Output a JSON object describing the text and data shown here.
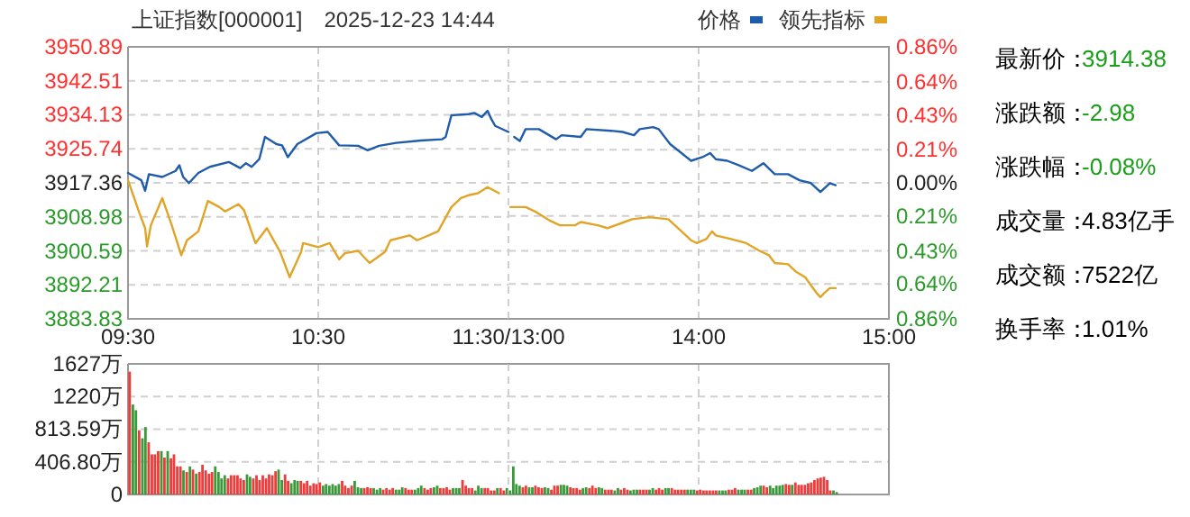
{
  "chart_data": [
    {
      "type": "line",
      "title": "上证指数[000001]　2025-12-23 14:44",
      "grid": true,
      "xlim": [
        9.5,
        11.5
      ],
      "xticks": [
        {
          "value": 9.5,
          "label": "09:30"
        },
        {
          "value": 10.5,
          "label": "10:30"
        },
        {
          "value": 11.5,
          "label": "11:30/13:00"
        }
      ],
      "ylim": [
        3883.83,
        3950.89
      ],
      "yticks": [
        3883.83,
        3892.21,
        3900.59,
        3908.98,
        3917.36,
        3925.74,
        3934.13,
        3942.51,
        3950.89
      ],
      "series": [
        {
          "color": "#1f5cab",
          "x": [
            9.5,
            9.57,
            9.59,
            9.61,
            9.68,
            9.75,
            9.77,
            9.79,
            9.82,
            9.87,
            9.93,
            10.03,
            10.09,
            10.12,
            10.15,
            10.19,
            10.22,
            10.28,
            10.31,
            10.34,
            10.39,
            10.49,
            10.55,
            10.61,
            10.71,
            10.76,
            10.82,
            10.91,
            11.04,
            11.15,
            11.17,
            11.2,
            11.29,
            11.32,
            11.36,
            11.39,
            11.41,
            11.43,
            11.5
          ],
          "values": [
            3919.8,
            3918.0,
            3915.4,
            3919.5,
            3918.8,
            3920.3,
            3921.7,
            3918.8,
            3917.3,
            3919.8,
            3921.3,
            3922.5,
            3921.0,
            3922.2,
            3921.3,
            3923.2,
            3928.7,
            3926.9,
            3926.6,
            3923.7,
            3926.9,
            3929.6,
            3929.9,
            3926.6,
            3926.5,
            3925.4,
            3926.5,
            3927.2,
            3927.8,
            3928.1,
            3928.7,
            3934.0,
            3934.3,
            3934.6,
            3933.6,
            3935.1,
            3933.1,
            3931.4,
            3929.9
          ]
        },
        {
          "color": "#e0a526",
          "x": [
            9.5,
            9.56,
            9.59,
            9.6,
            9.62,
            9.68,
            9.73,
            9.78,
            9.81,
            9.87,
            9.92,
            9.98,
            10.01,
            10.08,
            10.11,
            10.17,
            10.23,
            10.3,
            10.35,
            10.41,
            10.42,
            10.5,
            10.56,
            10.61,
            10.64,
            10.71,
            10.77,
            10.85,
            10.88,
            10.98,
            11.02,
            11.13,
            11.2,
            11.25,
            11.29,
            11.34,
            11.39,
            11.45
          ],
          "values": [
            3918.0,
            3909.9,
            3906.2,
            3901.7,
            3906.9,
            3913.6,
            3906.9,
            3899.5,
            3903.2,
            3905.4,
            3912.9,
            3911.4,
            3910.3,
            3912.1,
            3910.6,
            3902.5,
            3906.2,
            3900.3,
            3894.1,
            3900.3,
            3902.5,
            3901.5,
            3902.5,
            3898.5,
            3900.0,
            3900.6,
            3897.6,
            3900.3,
            3903.2,
            3904.4,
            3903.2,
            3905.4,
            3911.4,
            3913.6,
            3914.3,
            3914.8,
            3916.3,
            3914.8
          ]
        }
      ]
    },
    {
      "type": "line",
      "legend": "top right",
      "grid": true,
      "xlim": [
        13,
        15
      ],
      "xticks": [
        {
          "value": 13,
          "label": null
        },
        {
          "value": 14,
          "label": "14:00"
        },
        {
          "value": 15,
          "label": "15:00"
        }
      ],
      "ylim": [
        3883.83,
        3950.89
      ],
      "y2lim": [
        -0.86,
        0.86
      ],
      "y2ticks": [
        {
          "value": -0.86,
          "label": "0.86%"
        },
        {
          "value": -0.64,
          "label": "0.64%"
        },
        {
          "value": -0.43,
          "label": "0.43%"
        },
        {
          "value": -0.21,
          "label": "0.21%"
        },
        {
          "value": 0,
          "label": "0.00%"
        },
        {
          "value": 0.21,
          "label": "0.21%"
        },
        {
          "value": 0.43,
          "label": "0.43%"
        },
        {
          "value": 0.64,
          "label": "0.64%"
        },
        {
          "value": 0.86,
          "label": "0.86%"
        }
      ],
      "series": [
        {
          "name": "价格",
          "color": "#1f5cab",
          "x": [
            13.03,
            13.06,
            13.09,
            13.16,
            13.25,
            13.28,
            13.38,
            13.41,
            13.54,
            13.6,
            13.66,
            13.69,
            13.76,
            13.79,
            13.85,
            13.91,
            13.96,
            14.02,
            14.06,
            14.09,
            14.15,
            14.21,
            14.28,
            14.34,
            14.4,
            14.47,
            14.53,
            14.59,
            14.64,
            14.69,
            14.72
          ],
          "values": [
            3928.7,
            3927.7,
            3930.6,
            3930.6,
            3928.1,
            3929.1,
            3928.7,
            3930.6,
            3930.2,
            3929.9,
            3929.1,
            3930.6,
            3931.1,
            3930.6,
            3926.9,
            3924.7,
            3922.8,
            3923.7,
            3924.7,
            3923.2,
            3922.8,
            3921.7,
            3920.3,
            3922.2,
            3919.5,
            3919.5,
            3918.0,
            3917.3,
            3915.1,
            3917.3,
            3916.8
          ]
        },
        {
          "name": "领先指标",
          "color": "#e0a526",
          "x": [
            13.01,
            13.09,
            13.14,
            13.22,
            13.27,
            13.35,
            13.38,
            13.47,
            13.52,
            13.61,
            13.65,
            13.74,
            13.84,
            13.91,
            13.96,
            13.99,
            14.04,
            14.07,
            14.09,
            14.17,
            14.25,
            14.32,
            14.37,
            14.4,
            14.47,
            14.51,
            14.56,
            14.59,
            14.62,
            14.64,
            14.66,
            14.69,
            14.72
          ],
          "values": [
            3911.4,
            3911.4,
            3910.3,
            3908.0,
            3906.9,
            3906.9,
            3907.7,
            3906.9,
            3906.2,
            3907.7,
            3908.4,
            3908.9,
            3908.4,
            3905.4,
            3903.2,
            3902.5,
            3903.5,
            3905.4,
            3904.4,
            3903.5,
            3902.5,
            3900.6,
            3899.5,
            3897.6,
            3897.3,
            3895.5,
            3894.1,
            3892.1,
            3890.2,
            3889.2,
            3890.2,
            3891.4,
            3891.4
          ]
        }
      ]
    },
    {
      "type": "bar",
      "grid": true,
      "tick_labels": "y",
      "xlim": [
        9.5,
        11.5
      ],
      "xticks": [
        9.5,
        10.5,
        11.5
      ],
      "ylim": [
        0,
        1627
      ],
      "yticks": [
        0,
        {
          "value": 406.8,
          "label": "406.80万"
        },
        {
          "value": 813.59,
          "label": "813.59万"
        },
        {
          "value": 1220,
          "label": "1220万"
        },
        {
          "value": 1627,
          "label": "1627万"
        }
      ],
      "x": [
        9.5,
        9.517,
        9.533,
        9.55,
        9.567,
        9.583,
        9.6,
        9.617,
        9.633,
        9.65,
        9.667,
        9.683,
        9.7,
        9.717,
        9.733,
        9.75,
        9.767,
        9.783,
        9.8,
        9.817,
        9.833,
        9.85,
        9.867,
        9.883,
        9.9,
        9.917,
        9.933,
        9.95,
        9.967,
        9.983,
        10,
        10.017,
        10.033,
        10.05,
        10.067,
        10.083,
        10.1,
        10.117,
        10.133,
        10.15,
        10.167,
        10.183,
        10.2,
        10.217,
        10.233,
        10.25,
        10.267,
        10.283,
        10.3,
        10.317,
        10.333,
        10.35,
        10.367,
        10.383,
        10.4,
        10.417,
        10.433,
        10.45,
        10.467,
        10.483,
        10.5,
        10.517,
        10.533,
        10.55,
        10.567,
        10.583,
        10.6,
        10.617,
        10.633,
        10.65,
        10.667,
        10.683,
        10.7,
        10.717,
        10.733,
        10.75,
        10.767,
        10.783,
        10.8,
        10.817,
        10.833,
        10.85,
        10.867,
        10.883,
        10.9,
        10.917,
        10.933,
        10.95,
        10.967,
        10.983,
        11,
        11.017,
        11.033,
        11.05,
        11.067,
        11.083,
        11.1,
        11.117,
        11.133,
        11.15,
        11.167,
        11.183,
        11.2,
        11.217,
        11.233,
        11.25,
        11.267,
        11.283,
        11.3,
        11.317,
        11.333,
        11.35,
        11.367,
        11.383,
        11.4,
        11.417,
        11.433,
        11.45,
        11.467,
        11.483
      ],
      "values": [
        1530,
        1120,
        1050,
        800,
        700,
        840,
        650,
        500,
        500,
        540,
        540,
        460,
        540,
        450,
        500,
        350,
        350,
        300,
        280,
        350,
        310,
        260,
        280,
        370,
        300,
        260,
        280,
        350,
        280,
        200,
        240,
        200,
        240,
        240,
        240,
        200,
        180,
        250,
        220,
        200,
        240,
        180,
        240,
        200,
        250,
        240,
        290,
        310,
        180,
        250,
        170,
        140,
        180,
        170,
        170,
        140,
        170,
        110,
        140,
        130,
        150,
        110,
        130,
        110,
        130,
        110,
        130,
        170,
        110,
        80,
        110,
        170,
        90,
        80,
        80,
        90,
        80,
        80,
        60,
        80,
        60,
        80,
        60,
        80,
        60,
        60,
        90,
        80,
        60,
        60,
        60,
        80,
        110,
        80,
        60,
        80,
        90,
        110,
        80,
        80,
        90,
        60,
        80,
        80,
        80,
        180,
        110,
        80,
        80,
        50,
        110,
        80,
        80,
        80,
        50,
        50,
        80,
        80,
        50,
        80
      ],
      "colors": [
        "#ee3b3b",
        "#3a9a3a",
        "#3a9a3a",
        "#ee3b3b",
        "#3a9a3a",
        "#3a9a3a",
        "#ee3b3b",
        "#ee3b3b",
        "#ee3b3b",
        "#ee3b3b",
        "#3a9a3a",
        "#ee3b3b",
        "#3a9a3a",
        "#ee3b3b",
        "#ee3b3b",
        "#ee3b3b",
        "#ee3b3b",
        "#3a9a3a",
        "#ee3b3b",
        "#3a9a3a",
        "#ee3b3b",
        "#3a9a3a",
        "#ee3b3b",
        "#ee3b3b",
        "#ee3b3b",
        "#ee3b3b",
        "#ee3b3b",
        "#3a9a3a",
        "#3a9a3a",
        "#3a9a3a",
        "#3a9a3a",
        "#ee3b3b",
        "#ee3b3b",
        "#ee3b3b",
        "#ee3b3b",
        "#ee3b3b",
        "#ee3b3b",
        "#3a9a3a",
        "#3a9a3a",
        "#ee3b3b",
        "#ee3b3b",
        "#ee3b3b",
        "#ee3b3b",
        "#ee3b3b",
        "#ee3b3b",
        "#ee3b3b",
        "#ee3b3b",
        "#3a9a3a",
        "#3a9a3a",
        "#ee3b3b",
        "#ee3b3b",
        "#3a9a3a",
        "#3a9a3a",
        "#3a9a3a",
        "#ee3b3b",
        "#ee3b3b",
        "#ee3b3b",
        "#ee3b3b",
        "#ee3b3b",
        "#ee3b3b",
        "#ee3b3b",
        "#3a9a3a",
        "#3a9a3a",
        "#3a9a3a",
        "#3a9a3a",
        "#3a9a3a",
        "#3a9a3a",
        "#ee3b3b",
        "#ee3b3b",
        "#ee3b3b",
        "#ee3b3b",
        "#3a9a3a",
        "#3a9a3a",
        "#3a9a3a",
        "#ee3b3b",
        "#ee3b3b",
        "#ee3b3b",
        "#3a9a3a",
        "#3a9a3a",
        "#3a9a3a",
        "#ee3b3b",
        "#ee3b3b",
        "#ee3b3b",
        "#ee3b3b",
        "#3a9a3a",
        "#3a9a3a",
        "#3a9a3a",
        "#ee3b3b",
        "#ee3b3b",
        "#ee3b3b",
        "#3a9a3a",
        "#3a9a3a",
        "#3a9a3a",
        "#ee3b3b",
        "#ee3b3b",
        "#ee3b3b",
        "#3a9a3a",
        "#3a9a3a",
        "#ee3b3b",
        "#ee3b3b",
        "#ee3b3b",
        "#ee3b3b",
        "#3a9a3a",
        "#3a9a3a",
        "#3a9a3a",
        "#ee3b3b",
        "#ee3b3b",
        "#ee3b3b",
        "#ee3b3b",
        "#3a9a3a",
        "#3a9a3a",
        "#3a9a3a",
        "#ee3b3b",
        "#ee3b3b",
        "#ee3b3b",
        "#ee3b3b",
        "#3a9a3a",
        "#ee3b3b",
        "#ee3b3b",
        "#3a9a3a"
      ]
    },
    {
      "type": "bar",
      "grid": true,
      "tick_labels": false,
      "xlim": [
        13,
        15
      ],
      "xticks": [
        13,
        14,
        15
      ],
      "ylim": [
        0,
        1627
      ],
      "yticks": [
        0,
        406.8,
        813.59,
        1220,
        1627
      ],
      "x": [
        13,
        13.017,
        13.033,
        13.05,
        13.067,
        13.083,
        13.1,
        13.117,
        13.133,
        13.15,
        13.167,
        13.183,
        13.2,
        13.217,
        13.233,
        13.25,
        13.267,
        13.283,
        13.3,
        13.317,
        13.333,
        13.35,
        13.367,
        13.383,
        13.4,
        13.417,
        13.433,
        13.45,
        13.467,
        13.483,
        13.5,
        13.517,
        13.533,
        13.55,
        13.567,
        13.583,
        13.6,
        13.617,
        13.633,
        13.65,
        13.667,
        13.683,
        13.7,
        13.717,
        13.733,
        13.75,
        13.767,
        13.783,
        13.8,
        13.817,
        13.833,
        13.85,
        13.867,
        13.883,
        13.9,
        13.917,
        13.933,
        13.95,
        13.967,
        13.983,
        14,
        14.017,
        14.033,
        14.05,
        14.067,
        14.083,
        14.1,
        14.117,
        14.133,
        14.15,
        14.167,
        14.183,
        14.2,
        14.217,
        14.233,
        14.25,
        14.267,
        14.283,
        14.3,
        14.317,
        14.333,
        14.35,
        14.367,
        14.383,
        14.4,
        14.417,
        14.433,
        14.45,
        14.467,
        14.483,
        14.5,
        14.517,
        14.533,
        14.55,
        14.567,
        14.583,
        14.6,
        14.617,
        14.633,
        14.65,
        14.667,
        14.683,
        14.7,
        14.717
      ],
      "values": [
        50,
        350,
        130,
        110,
        90,
        110,
        90,
        90,
        110,
        90,
        80,
        90,
        80,
        60,
        110,
        110,
        120,
        120,
        110,
        90,
        80,
        80,
        60,
        80,
        90,
        80,
        110,
        80,
        90,
        80,
        60,
        60,
        60,
        50,
        80,
        60,
        80,
        60,
        50,
        60,
        60,
        60,
        60,
        60,
        60,
        80,
        60,
        80,
        60,
        80,
        80,
        80,
        60,
        60,
        60,
        60,
        60,
        60,
        60,
        50,
        60,
        50,
        50,
        50,
        50,
        50,
        50,
        50,
        50,
        60,
        60,
        80,
        60,
        60,
        60,
        60,
        60,
        80,
        90,
        110,
        110,
        90,
        110,
        80,
        110,
        110,
        120,
        130,
        120,
        120,
        150,
        120,
        120,
        120,
        140,
        150,
        180,
        200,
        210,
        220,
        180,
        50,
        50,
        30
      ],
      "colors": [
        "#3a9a3a",
        "#3a9a3a",
        "#3a9a3a",
        "#3a9a3a",
        "#ee3b3b",
        "#ee3b3b",
        "#3a9a3a",
        "#3a9a3a",
        "#ee3b3b",
        "#ee3b3b",
        "#ee3b3b",
        "#3a9a3a",
        "#3a9a3a",
        "#ee3b3b",
        "#ee3b3b",
        "#ee3b3b",
        "#3a9a3a",
        "#3a9a3a",
        "#3a9a3a",
        "#ee3b3b",
        "#ee3b3b",
        "#ee3b3b",
        "#ee3b3b",
        "#3a9a3a",
        "#3a9a3a",
        "#ee3b3b",
        "#ee3b3b",
        "#ee3b3b",
        "#3a9a3a",
        "#3a9a3a",
        "#ee3b3b",
        "#ee3b3b",
        "#ee3b3b",
        "#3a9a3a",
        "#3a9a3a",
        "#ee3b3b",
        "#ee3b3b",
        "#ee3b3b",
        "#3a9a3a",
        "#3a9a3a",
        "#3a9a3a",
        "#ee3b3b",
        "#ee3b3b",
        "#ee3b3b",
        "#3a9a3a",
        "#3a9a3a",
        "#ee3b3b",
        "#ee3b3b",
        "#ee3b3b",
        "#3a9a3a",
        "#3a9a3a",
        "#ee3b3b",
        "#ee3b3b",
        "#ee3b3b",
        "#ee3b3b",
        "#ee3b3b",
        "#3a9a3a",
        "#3a9a3a",
        "#3a9a3a",
        "#ee3b3b",
        "#ee3b3b",
        "#ee3b3b",
        "#ee3b3b",
        "#ee3b3b",
        "#ee3b3b",
        "#ee3b3b",
        "#3a9a3a",
        "#3a9a3a",
        "#3a9a3a",
        "#ee3b3b",
        "#ee3b3b",
        "#ee3b3b",
        "#3a9a3a",
        "#3a9a3a",
        "#3a9a3a",
        "#ee3b3b",
        "#ee3b3b",
        "#3a9a3a",
        "#3a9a3a",
        "#3a9a3a",
        "#ee3b3b",
        "#ee3b3b",
        "#3a9a3a",
        "#3a9a3a",
        "#3a9a3a",
        "#3a9a3a",
        "#3a9a3a",
        "#ee3b3b",
        "#ee3b3b",
        "#3a9a3a",
        "#ee3b3b",
        "#ee3b3b",
        "#ee3b3b",
        "#ee3b3b",
        "#ee3b3b",
        "#ee3b3b",
        "#ee3b3b",
        "#ee3b3b",
        "#ee3b3b",
        "#ee3b3b",
        "#ee3b3b",
        "#ee3b3b",
        "#3a9a3a",
        "#3a9a3a"
      ]
    },
    {
      "type": "other",
      "annotations": [
        "最新价：",
        "3914.38",
        "涨跌额：",
        "-2.98",
        "涨跌幅：",
        "-0.08%",
        "成交量：",
        "4.83亿手",
        "成交额：",
        "7522亿",
        "换手率：",
        "1.01%"
      ],
      "colors": [
        "#000000",
        "#1a9e1a",
        "#000000",
        "#1a9e1a",
        "#000000",
        "#1a9e1a",
        "#000000",
        "#000000",
        "#000000",
        "#000000",
        "#000000",
        "#000000"
      ]
    }
  ]
}
